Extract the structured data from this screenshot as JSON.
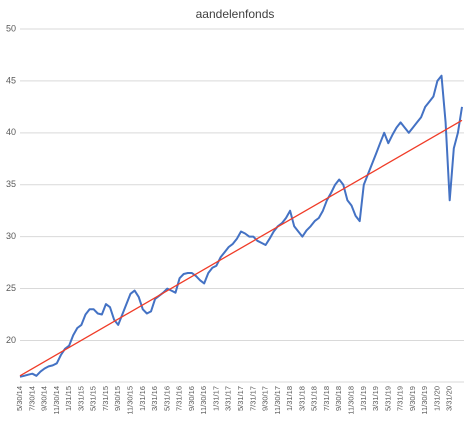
{
  "chart_data": {
    "type": "line",
    "title": "aandelenfonds",
    "categories": [
      "5/30/14",
      null,
      null,
      "7/30/14",
      null,
      null,
      "9/30/14",
      null,
      null,
      "11/30/14",
      null,
      null,
      "1/31/15",
      null,
      null,
      "3/31/15",
      null,
      null,
      "5/31/15",
      null,
      null,
      "7/31/15",
      null,
      null,
      "9/30/15",
      null,
      null,
      "11/30/15",
      null,
      null,
      "1/31/16",
      null,
      null,
      "3/31/16",
      null,
      null,
      "5/31/16",
      null,
      null,
      "7/31/16",
      null,
      null,
      "9/30/16",
      null,
      null,
      "11/30/16",
      null,
      null,
      "1/31/17",
      null,
      null,
      "3/31/17",
      null,
      null,
      "5/31/17",
      null,
      null,
      "7/31/17",
      null,
      null,
      "9/30/17",
      null,
      null,
      "11/30/17",
      null,
      null,
      "1/31/18",
      null,
      null,
      "3/31/18",
      null,
      null,
      "5/31/18",
      null,
      null,
      "7/31/18",
      null,
      null,
      "9/30/18",
      null,
      null,
      "11/30/18",
      null,
      null,
      "1/31/19",
      null,
      null,
      "3/31/19",
      null,
      null,
      "5/31/19",
      null,
      null,
      "7/31/19",
      null,
      null,
      "9/30/19",
      null,
      null,
      "11/30/19",
      null,
      null,
      "1/31/20",
      null,
      null,
      "3/31/20",
      null,
      null,
      null
    ],
    "series": [
      {
        "color": "#4472c4",
        "values": [
          16.5,
          16.6,
          16.7,
          16.8,
          16.6,
          17.0,
          17.3,
          17.5,
          17.6,
          17.8,
          18.6,
          19.2,
          19.5,
          20.5,
          21.2,
          21.5,
          22.5,
          23.0,
          23.0,
          22.6,
          22.5,
          23.5,
          23.2,
          22.0,
          21.5,
          22.5,
          23.5,
          24.5,
          24.8,
          24.2,
          23.0,
          22.6,
          22.8,
          24.0,
          24.3,
          24.6,
          25.0,
          24.8,
          24.6,
          26.0,
          26.4,
          26.5,
          26.5,
          26.2,
          25.8,
          25.5,
          26.5,
          27.0,
          27.2,
          28.0,
          28.5,
          29.0,
          29.3,
          29.8,
          30.5,
          30.3,
          30.0,
          30.0,
          29.6,
          29.4,
          29.2,
          29.8,
          30.5,
          31.0,
          31.3,
          31.8,
          32.5,
          31.0,
          30.5,
          30.0,
          30.6,
          31.0,
          31.5,
          31.8,
          32.5,
          33.5,
          34.2,
          35.0,
          35.5,
          35.0,
          33.5,
          33.0,
          32.0,
          31.5,
          35.0,
          36.0,
          37.0,
          38.0,
          39.0,
          40.0,
          39.0,
          39.8,
          40.5,
          41.0,
          40.5,
          40.0,
          40.5,
          41.0,
          41.5,
          42.5,
          43.0,
          43.5,
          45.0,
          45.5,
          41.0,
          33.5,
          38.5,
          40.0,
          42.5
        ]
      }
    ],
    "trendline": {
      "color": "#f03c28",
      "values": [
        16.6,
        41.2
      ]
    },
    "ylim": [
      16,
      50
    ],
    "yticks": [
      20,
      25,
      30,
      35,
      40,
      45,
      50
    ],
    "grid": true
  }
}
